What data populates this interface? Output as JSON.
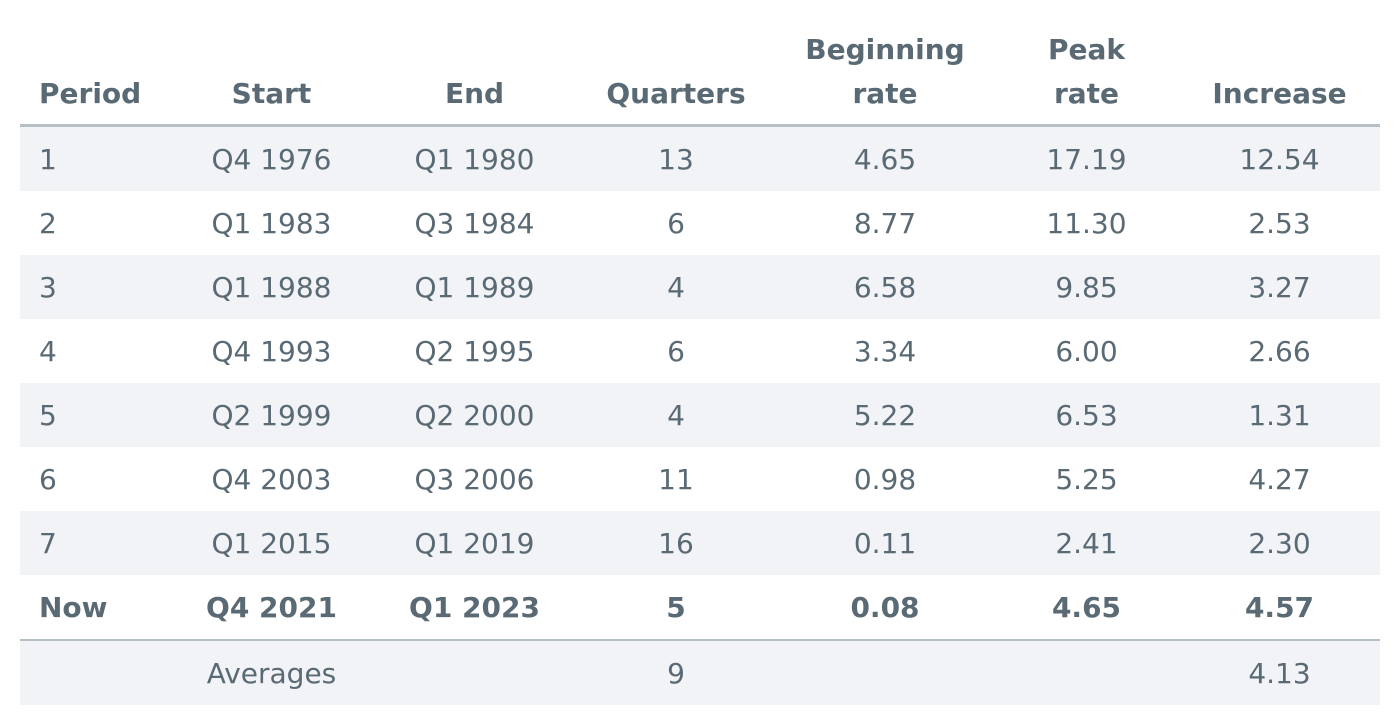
{
  "table": {
    "headers": {
      "period": "Period",
      "start": "Start",
      "end": "End",
      "quarters": "Quarters",
      "beginning_rate_line1": "Beginning",
      "beginning_rate_line2": "rate",
      "peak_rate_line1": "Peak",
      "peak_rate_line2": "rate",
      "increase": "Increase"
    },
    "rows": [
      {
        "period": "1",
        "start": "Q4 1976",
        "end": "Q1 1980",
        "quarters": "13",
        "beginning_rate": "4.65",
        "peak_rate": "17.19",
        "increase": "12.54"
      },
      {
        "period": "2",
        "start": "Q1 1983",
        "end": "Q3 1984",
        "quarters": "6",
        "beginning_rate": "8.77",
        "peak_rate": "11.30",
        "increase": "2.53"
      },
      {
        "period": "3",
        "start": "Q1 1988",
        "end": "Q1 1989",
        "quarters": "4",
        "beginning_rate": "6.58",
        "peak_rate": "9.85",
        "increase": "3.27"
      },
      {
        "period": "4",
        "start": "Q4 1993",
        "end": "Q2 1995",
        "quarters": "6",
        "beginning_rate": "3.34",
        "peak_rate": "6.00",
        "increase": "2.66"
      },
      {
        "period": "5",
        "start": "Q2 1999",
        "end": "Q2 2000",
        "quarters": "4",
        "beginning_rate": "5.22",
        "peak_rate": "6.53",
        "increase": "1.31"
      },
      {
        "period": "6",
        "start": "Q4 2003",
        "end": "Q3 2006",
        "quarters": "11",
        "beginning_rate": "0.98",
        "peak_rate": "5.25",
        "increase": "4.27"
      },
      {
        "period": "7",
        "start": "Q1 2015",
        "end": "Q1 2019",
        "quarters": "16",
        "beginning_rate": "0.11",
        "peak_rate": "2.41",
        "increase": "2.30"
      },
      {
        "period": "Now",
        "start": "Q4 2021",
        "end": "Q1 2023",
        "quarters": "5",
        "beginning_rate": "0.08",
        "peak_rate": "4.65",
        "increase": "4.57"
      }
    ],
    "averages": {
      "label": "Averages",
      "quarters": "9",
      "increase": "4.13"
    }
  },
  "colors": {
    "text": "#5a6a74",
    "row_shade": "#f1f3f6",
    "rule": "#b5bfc6"
  }
}
